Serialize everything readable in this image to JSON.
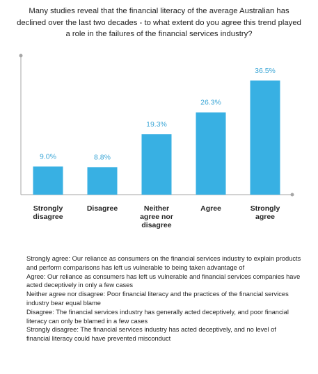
{
  "chart_data": {
    "type": "bar",
    "title": "Many studies reveal that the financial literacy of the average Australian has declined over the last two decades - to what extent do you agree this trend played a role in the failures of the financial services industry?",
    "categories": [
      [
        "Strongly",
        "disagree"
      ],
      [
        "Disagree"
      ],
      [
        "Neither",
        "agree nor",
        "disagree"
      ],
      [
        "Agree"
      ],
      [
        "Strongly",
        "agree"
      ]
    ],
    "values": [
      9.0,
      8.8,
      19.3,
      26.3,
      36.5
    ],
    "value_labels": [
      "9.0%",
      "8.8%",
      "19.3%",
      "26.3%",
      "36.5%"
    ],
    "unit": "%",
    "ylim": [
      0,
      40
    ],
    "grid": false,
    "bar_color": "#38b0e3",
    "label_color": "#3ba6d6",
    "axis_color": "#a6a6a6"
  },
  "definitions": [
    "Strongly agree: Our reliance as consumers on the financial services industry to explain products and perform comparisons has left us vulnerable to being taken advantage of",
    "Agree: Our reliance as consumers has left us vulnerable and financial services companies have acted deceptively in only a few cases",
    "Neither agree nor disagree: Poor financial literacy and the practices of the financial services industry bear equal blame",
    "Disagree: The financial services industry has generally acted deceptively, and poor financial literacy can only be blamed in a few cases",
    "Strongly disagree: The financial services industry has acted deceptively, and no level of financial literacy could have prevented misconduct"
  ]
}
